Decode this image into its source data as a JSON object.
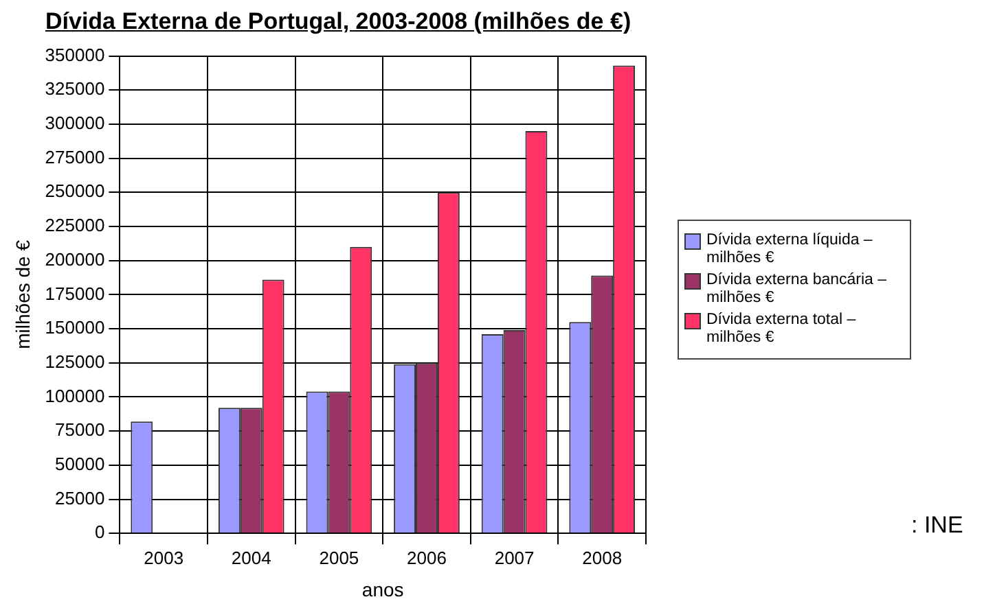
{
  "chart_data": {
    "type": "bar",
    "title": "Dívida Externa de Portugal, 2003-2008 (milhões de €)",
    "xlabel": "anos",
    "ylabel": "milhões de €",
    "categories": [
      "2003",
      "2004",
      "2005",
      "2006",
      "2007",
      "2008"
    ],
    "series": [
      {
        "name": "Dívida externa líquida – milhões €",
        "color": "#9999ff",
        "values": [
          82000,
          92000,
          104000,
          124000,
          146000,
          155000
        ]
      },
      {
        "name": "Dívida externa bancária – milhões €",
        "color": "#993366",
        "values": [
          null,
          92000,
          104000,
          125000,
          149000,
          189000
        ]
      },
      {
        "name": "Dívida externa total – milhões €",
        "color": "#ff3366",
        "values": [
          null,
          186000,
          210000,
          250000,
          295000,
          343000
        ]
      }
    ],
    "ylim": [
      0,
      350000
    ],
    "yticks": [
      0,
      25000,
      50000,
      75000,
      100000,
      125000,
      150000,
      175000,
      200000,
      225000,
      250000,
      275000,
      300000,
      325000,
      350000
    ],
    "grid": true,
    "legend": "right",
    "annotations": [
      ": INE"
    ]
  }
}
